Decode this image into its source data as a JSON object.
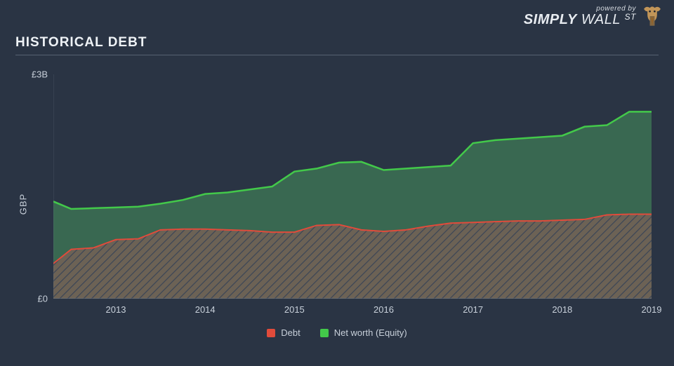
{
  "branding": {
    "powered_by": "powered by",
    "brand_a": "SIMPLY",
    "brand_b": "WALL",
    "brand_c": "ST",
    "brand_color": "#f2f3f5",
    "bull_tie_color": "#e98b1e",
    "bull_body_color": "#c29558"
  },
  "title": "HISTORICAL DEBT",
  "chart": {
    "type": "stacked-area",
    "background_color": "#2a3444",
    "plot_background_color": "#2a3444",
    "text_color": "#c8d0da",
    "grid_color": "#6a7585",
    "y_axis": {
      "label": "GBP",
      "min": 0,
      "max": 3,
      "ticks": [
        0,
        3
      ],
      "tick_labels": [
        "£0",
        "£3B"
      ]
    },
    "x_axis": {
      "min": 2012.3,
      "max": 2019.0,
      "ticks": [
        2013,
        2014,
        2015,
        2016,
        2017,
        2018,
        2019
      ],
      "tick_labels": [
        "2013",
        "2014",
        "2015",
        "2016",
        "2017",
        "2018",
        "2019"
      ]
    },
    "series": [
      {
        "name": "Debt",
        "color": "#e14b3b",
        "fill_color": "#a18862",
        "fill_opacity": 0.55,
        "hatch": "diagonal",
        "hatch_color": "#3b4556",
        "line_width": 2,
        "x": [
          2012.3,
          2012.5,
          2012.75,
          2013.0,
          2013.25,
          2013.5,
          2013.75,
          2014.0,
          2014.25,
          2014.5,
          2014.75,
          2015.0,
          2015.25,
          2015.5,
          2015.75,
          2016.0,
          2016.25,
          2016.5,
          2016.75,
          2017.0,
          2017.25,
          2017.5,
          2017.75,
          2018.0,
          2018.25,
          2018.5,
          2018.75,
          2019.0
        ],
        "y": [
          0.47,
          0.66,
          0.68,
          0.79,
          0.8,
          0.92,
          0.93,
          0.93,
          0.92,
          0.91,
          0.89,
          0.89,
          0.98,
          0.99,
          0.92,
          0.9,
          0.92,
          0.97,
          1.01,
          1.02,
          1.03,
          1.04,
          1.04,
          1.05,
          1.06,
          1.12,
          1.13,
          1.13
        ]
      },
      {
        "name": "Net worth (Equity)",
        "color": "#43c94a",
        "fill_color": "#3f7a55",
        "fill_opacity": 0.75,
        "line_width": 2.5,
        "x": [
          2012.3,
          2012.5,
          2012.75,
          2013.0,
          2013.25,
          2013.5,
          2013.75,
          2014.0,
          2014.25,
          2014.5,
          2014.75,
          2015.0,
          2015.25,
          2015.5,
          2015.75,
          2016.0,
          2016.25,
          2016.5,
          2016.75,
          2017.0,
          2017.25,
          2017.5,
          2017.75,
          2018.0,
          2018.25,
          2018.5,
          2018.75,
          2019.0
        ],
        "y": [
          1.3,
          1.2,
          1.21,
          1.22,
          1.23,
          1.27,
          1.32,
          1.4,
          1.42,
          1.46,
          1.5,
          1.7,
          1.74,
          1.82,
          1.83,
          1.72,
          1.74,
          1.76,
          1.78,
          2.08,
          2.12,
          2.14,
          2.16,
          2.18,
          2.3,
          2.32,
          2.5,
          2.5
        ]
      }
    ],
    "legend": [
      {
        "label": "Debt",
        "color": "#e14b3b"
      },
      {
        "label": "Net worth (Equity)",
        "color": "#43c94a"
      }
    ]
  }
}
